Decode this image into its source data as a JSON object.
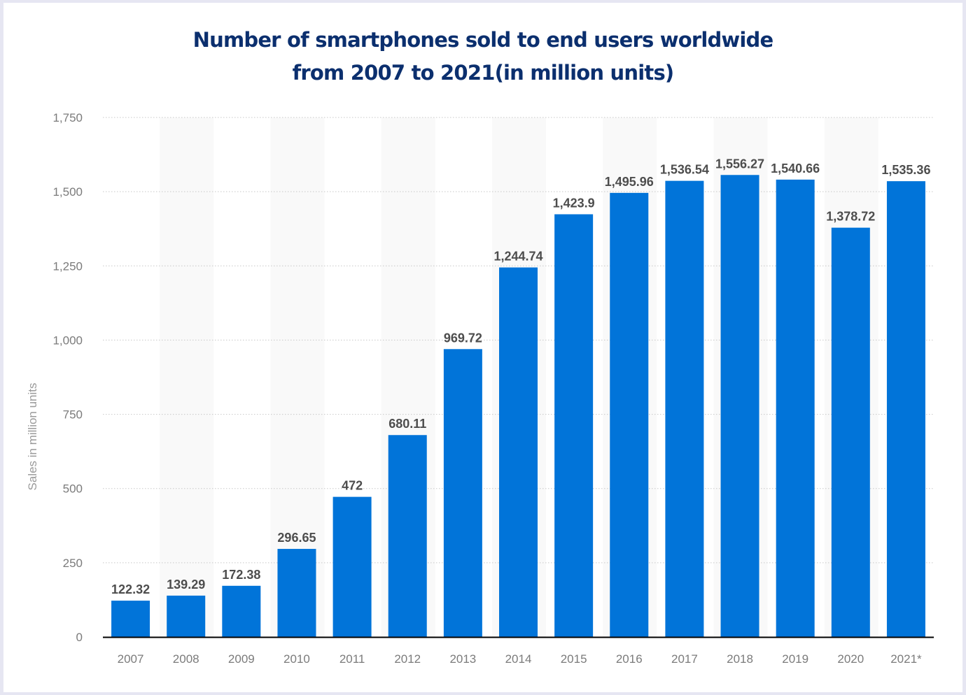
{
  "chart_data": {
    "type": "bar",
    "title": "Number of smartphones sold to end users worldwide from 2007 to 2021(in million units)",
    "title_lines": [
      "Number of smartphones sold to end users worldwide",
      "from 2007 to 2021(in million units)"
    ],
    "xlabel": "",
    "ylabel": "Sales in million units",
    "categories": [
      "2007",
      "2008",
      "2009",
      "2010",
      "2011",
      "2012",
      "2013",
      "2014",
      "2015",
      "2016",
      "2017",
      "2018",
      "2019",
      "2020",
      "2021*"
    ],
    "values": [
      122.32,
      139.29,
      172.38,
      296.65,
      472,
      680.11,
      969.72,
      1244.74,
      1423.9,
      1495.96,
      1536.54,
      1556.27,
      1540.66,
      1378.72,
      1535.36
    ],
    "value_labels": [
      "122.32",
      "139.29",
      "172.38",
      "296.65",
      "472",
      "680.11",
      "969.72",
      "1,244.74",
      "1,423.9",
      "1,495.96",
      "1,536.54",
      "1,556.27",
      "1,540.66",
      "1,378.72",
      "1,535.36"
    ],
    "ylim": [
      0,
      1750
    ],
    "yticks": [
      0,
      250,
      500,
      750,
      1000,
      1250,
      1500,
      1750
    ],
    "ytick_labels": [
      "0",
      "250",
      "500",
      "750",
      "1,000",
      "1,250",
      "1,500",
      "1,750"
    ],
    "grid": true,
    "legend": "none",
    "colors": {
      "bar": "#0174d9",
      "title": "#0b2f6e",
      "stripe": "#f9f9f9",
      "grid": "#c8c8c8",
      "axis": "#000000"
    }
  }
}
